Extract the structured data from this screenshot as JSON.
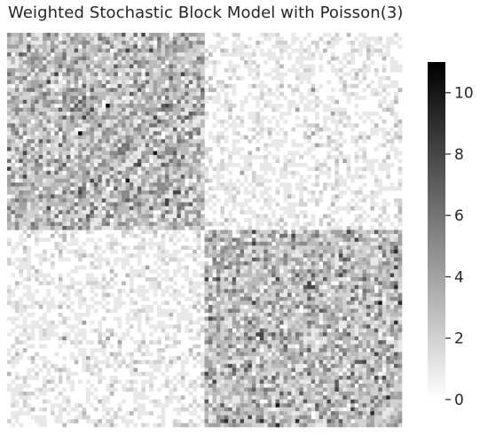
{
  "chart_data": {
    "type": "heatmap",
    "title": "Weighted Stochastic Block Model with Poisson(3)",
    "xlabel": "",
    "ylabel": "",
    "n_nodes": 100,
    "blocks": [
      {
        "nodes": [
          0,
          49
        ]
      },
      {
        "nodes": [
          50,
          99
        ]
      }
    ],
    "block_mean_weights": [
      [
        3,
        0.6
      ],
      [
        0.6,
        3
      ]
    ],
    "value_range": [
      0,
      11
    ],
    "colormap": "white-to-black",
    "colorbar": {
      "ticks": [
        0,
        2,
        4,
        6,
        8,
        10
      ],
      "tick_labels": [
        "0",
        "2",
        "4",
        "6",
        "8",
        "10"
      ],
      "placement": "right"
    },
    "axes_ticks_visible": false,
    "grid": false
  },
  "colors": {
    "low": "#ffffff",
    "high": "#000000",
    "text": "#262626"
  }
}
